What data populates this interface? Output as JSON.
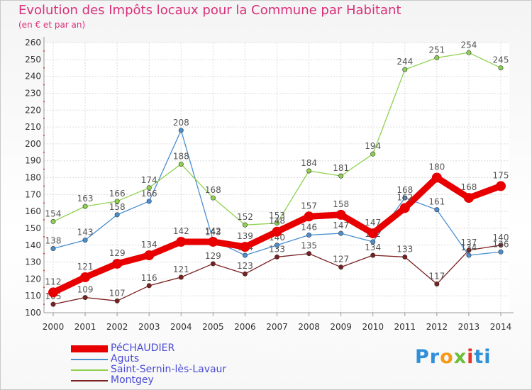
{
  "title": "Evolution des Impôts locaux pour la Commune par Habitant",
  "subtitle": "(en € et par an)",
  "brand": {
    "letters": [
      "P",
      "r",
      "o",
      "x",
      "i",
      "t",
      "i"
    ],
    "colors": [
      "#2f8fd8",
      "#2f8fd8",
      "#f39a1b",
      "#6cbf3a",
      "#e8342c",
      "#2f8fd8",
      "#2f8fd8"
    ]
  },
  "chart_data": {
    "type": "line",
    "x": [
      2000,
      2001,
      2002,
      2003,
      2004,
      2005,
      2006,
      2007,
      2008,
      2009,
      2010,
      2011,
      2012,
      2013,
      2014
    ],
    "ylim": [
      100,
      260
    ],
    "yticks": [
      100,
      110,
      120,
      130,
      140,
      150,
      160,
      170,
      180,
      190,
      200,
      210,
      220,
      230,
      240,
      250,
      260
    ],
    "grid": true,
    "legend_position": "bottom-left",
    "series": [
      {
        "name": "PéCHAUDIER",
        "color": "#e80000",
        "values": [
          112,
          121,
          129,
          134,
          142,
          142,
          139,
          148,
          157,
          158,
          147,
          162,
          180,
          168,
          175
        ],
        "labels": [
          "112",
          "121",
          "129",
          "134",
          "142",
          "142",
          "139",
          "148",
          "157",
          "158",
          "147",
          "162",
          "180",
          "168",
          "175"
        ]
      },
      {
        "name": "Aguts",
        "color": "#4a8fd0",
        "values": [
          138,
          143,
          158,
          166,
          208,
          143,
          134,
          140,
          146,
          147,
          142,
          168,
          161,
          134,
          136
        ],
        "labels": [
          "138",
          "143",
          "158",
          "166",
          "208",
          "143",
          "134",
          "140",
          "146",
          "147",
          "142",
          "168",
          "161",
          "134",
          "136"
        ]
      },
      {
        "name": "Saint-Sernin-lès-Lavaur",
        "color": "#8fd14f",
        "values": [
          154,
          163,
          166,
          174,
          188,
          168,
          152,
          153,
          184,
          181,
          194,
          244,
          251,
          254,
          245
        ],
        "labels": [
          "154",
          "163",
          "166",
          "174",
          "188",
          "168",
          "152",
          "153",
          "184",
          "181",
          "194",
          "244",
          "251",
          "254",
          "245"
        ]
      },
      {
        "name": "Montgey",
        "color": "#7a2020",
        "values": [
          105,
          109,
          107,
          116,
          121,
          129,
          123,
          133,
          135,
          127,
          134,
          133,
          117,
          137,
          140
        ],
        "labels": [
          "105",
          "109",
          "107",
          "116",
          "121",
          "129",
          "123",
          "133",
          "135",
          "127",
          "134",
          "133",
          "117",
          "137",
          "140"
        ]
      }
    ]
  }
}
